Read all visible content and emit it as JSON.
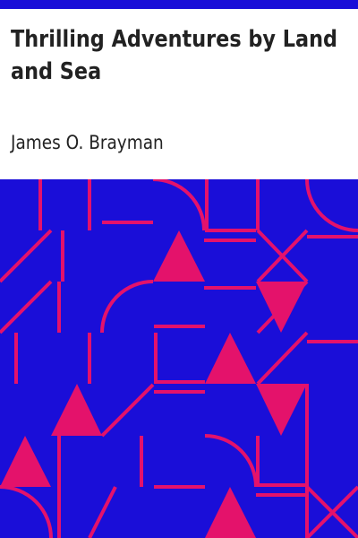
{
  "book": {
    "title": "Thrilling Adventures by Land and Sea",
    "author": "James O. Brayman"
  },
  "colors": {
    "band": "#1a0ed8",
    "art_background": "#1a0ed8",
    "art_foreground": "#e4126b",
    "text": "#222222"
  }
}
